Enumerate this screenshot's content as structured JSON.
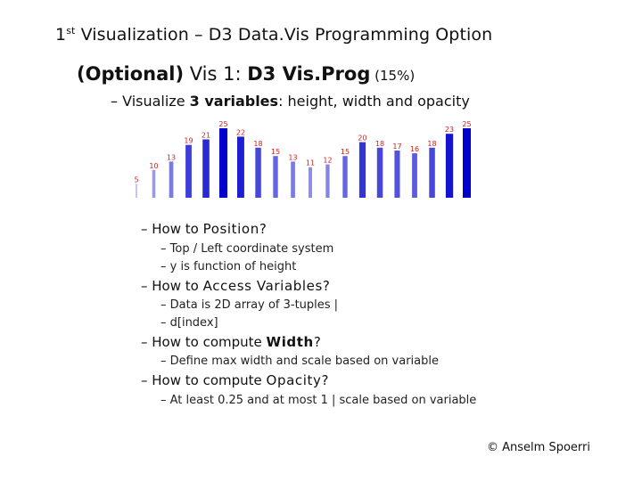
{
  "slide": {
    "title_prefix": "1",
    "title_sup": "st",
    "title_rest": " Visualization – D3 Data.Vis Programming Option",
    "subtitle_optional": "(Optional)",
    "subtitle_vis": " Vis 1: ",
    "subtitle_name": "D3 Vis.Prog",
    "subtitle_pct": " (15%)",
    "line1_dash": "– ",
    "line1_pre": "Visualize ",
    "line1_bold": "3 variables",
    "line1_post": ": height, width and opacity",
    "bullets": [
      {
        "dash": "– ",
        "pre": "How to ",
        "keyword": "Position",
        "post": "?",
        "subs": [
          "– Top / Left coordinate system",
          "– y is function of height"
        ]
      },
      {
        "dash": "– ",
        "pre": "How to ",
        "keyword": "Access Variables",
        "post": "?",
        "subs": [
          "– Data is 2D array of 3-tuples |",
          "– d[index]"
        ]
      },
      {
        "dash": "– ",
        "pre": "How to compute ",
        "keyword": "Width",
        "post": "?",
        "subs": [
          "– Define max width and scale based on variable"
        ]
      },
      {
        "dash": "– ",
        "pre": "How to compute ",
        "keyword": "Opacity",
        "post": "?",
        "subs": [
          "– At least 0.25 and at most 1 | scale based on variable"
        ]
      }
    ],
    "footer": "© Anselm Spoerri"
  },
  "chart_data": {
    "type": "bar",
    "title": "",
    "xlabel": "",
    "ylabel": "",
    "bar_color": "#0000cc",
    "label_color": "#d02020",
    "values": [
      5,
      10,
      13,
      19,
      21,
      25,
      22,
      18,
      15,
      13,
      11,
      12,
      15,
      20,
      18,
      17,
      16,
      18,
      23,
      25
    ],
    "widths": [
      5,
      10,
      13,
      19,
      21,
      25,
      22,
      18,
      15,
      13,
      11,
      12,
      15,
      20,
      18,
      17,
      16,
      18,
      23,
      25
    ],
    "opacities": [
      5,
      10,
      13,
      19,
      21,
      25,
      22,
      18,
      15,
      13,
      11,
      12,
      15,
      20,
      18,
      17,
      16,
      18,
      23,
      25
    ],
    "data_labels": [
      "5",
      "10",
      "13",
      "19",
      "21",
      "25",
      "22",
      "18",
      "15",
      "13",
      "11",
      "12",
      "15",
      "20",
      "18",
      "17",
      "16",
      "18",
      "23",
      "25"
    ],
    "ylim": [
      0,
      25
    ]
  }
}
